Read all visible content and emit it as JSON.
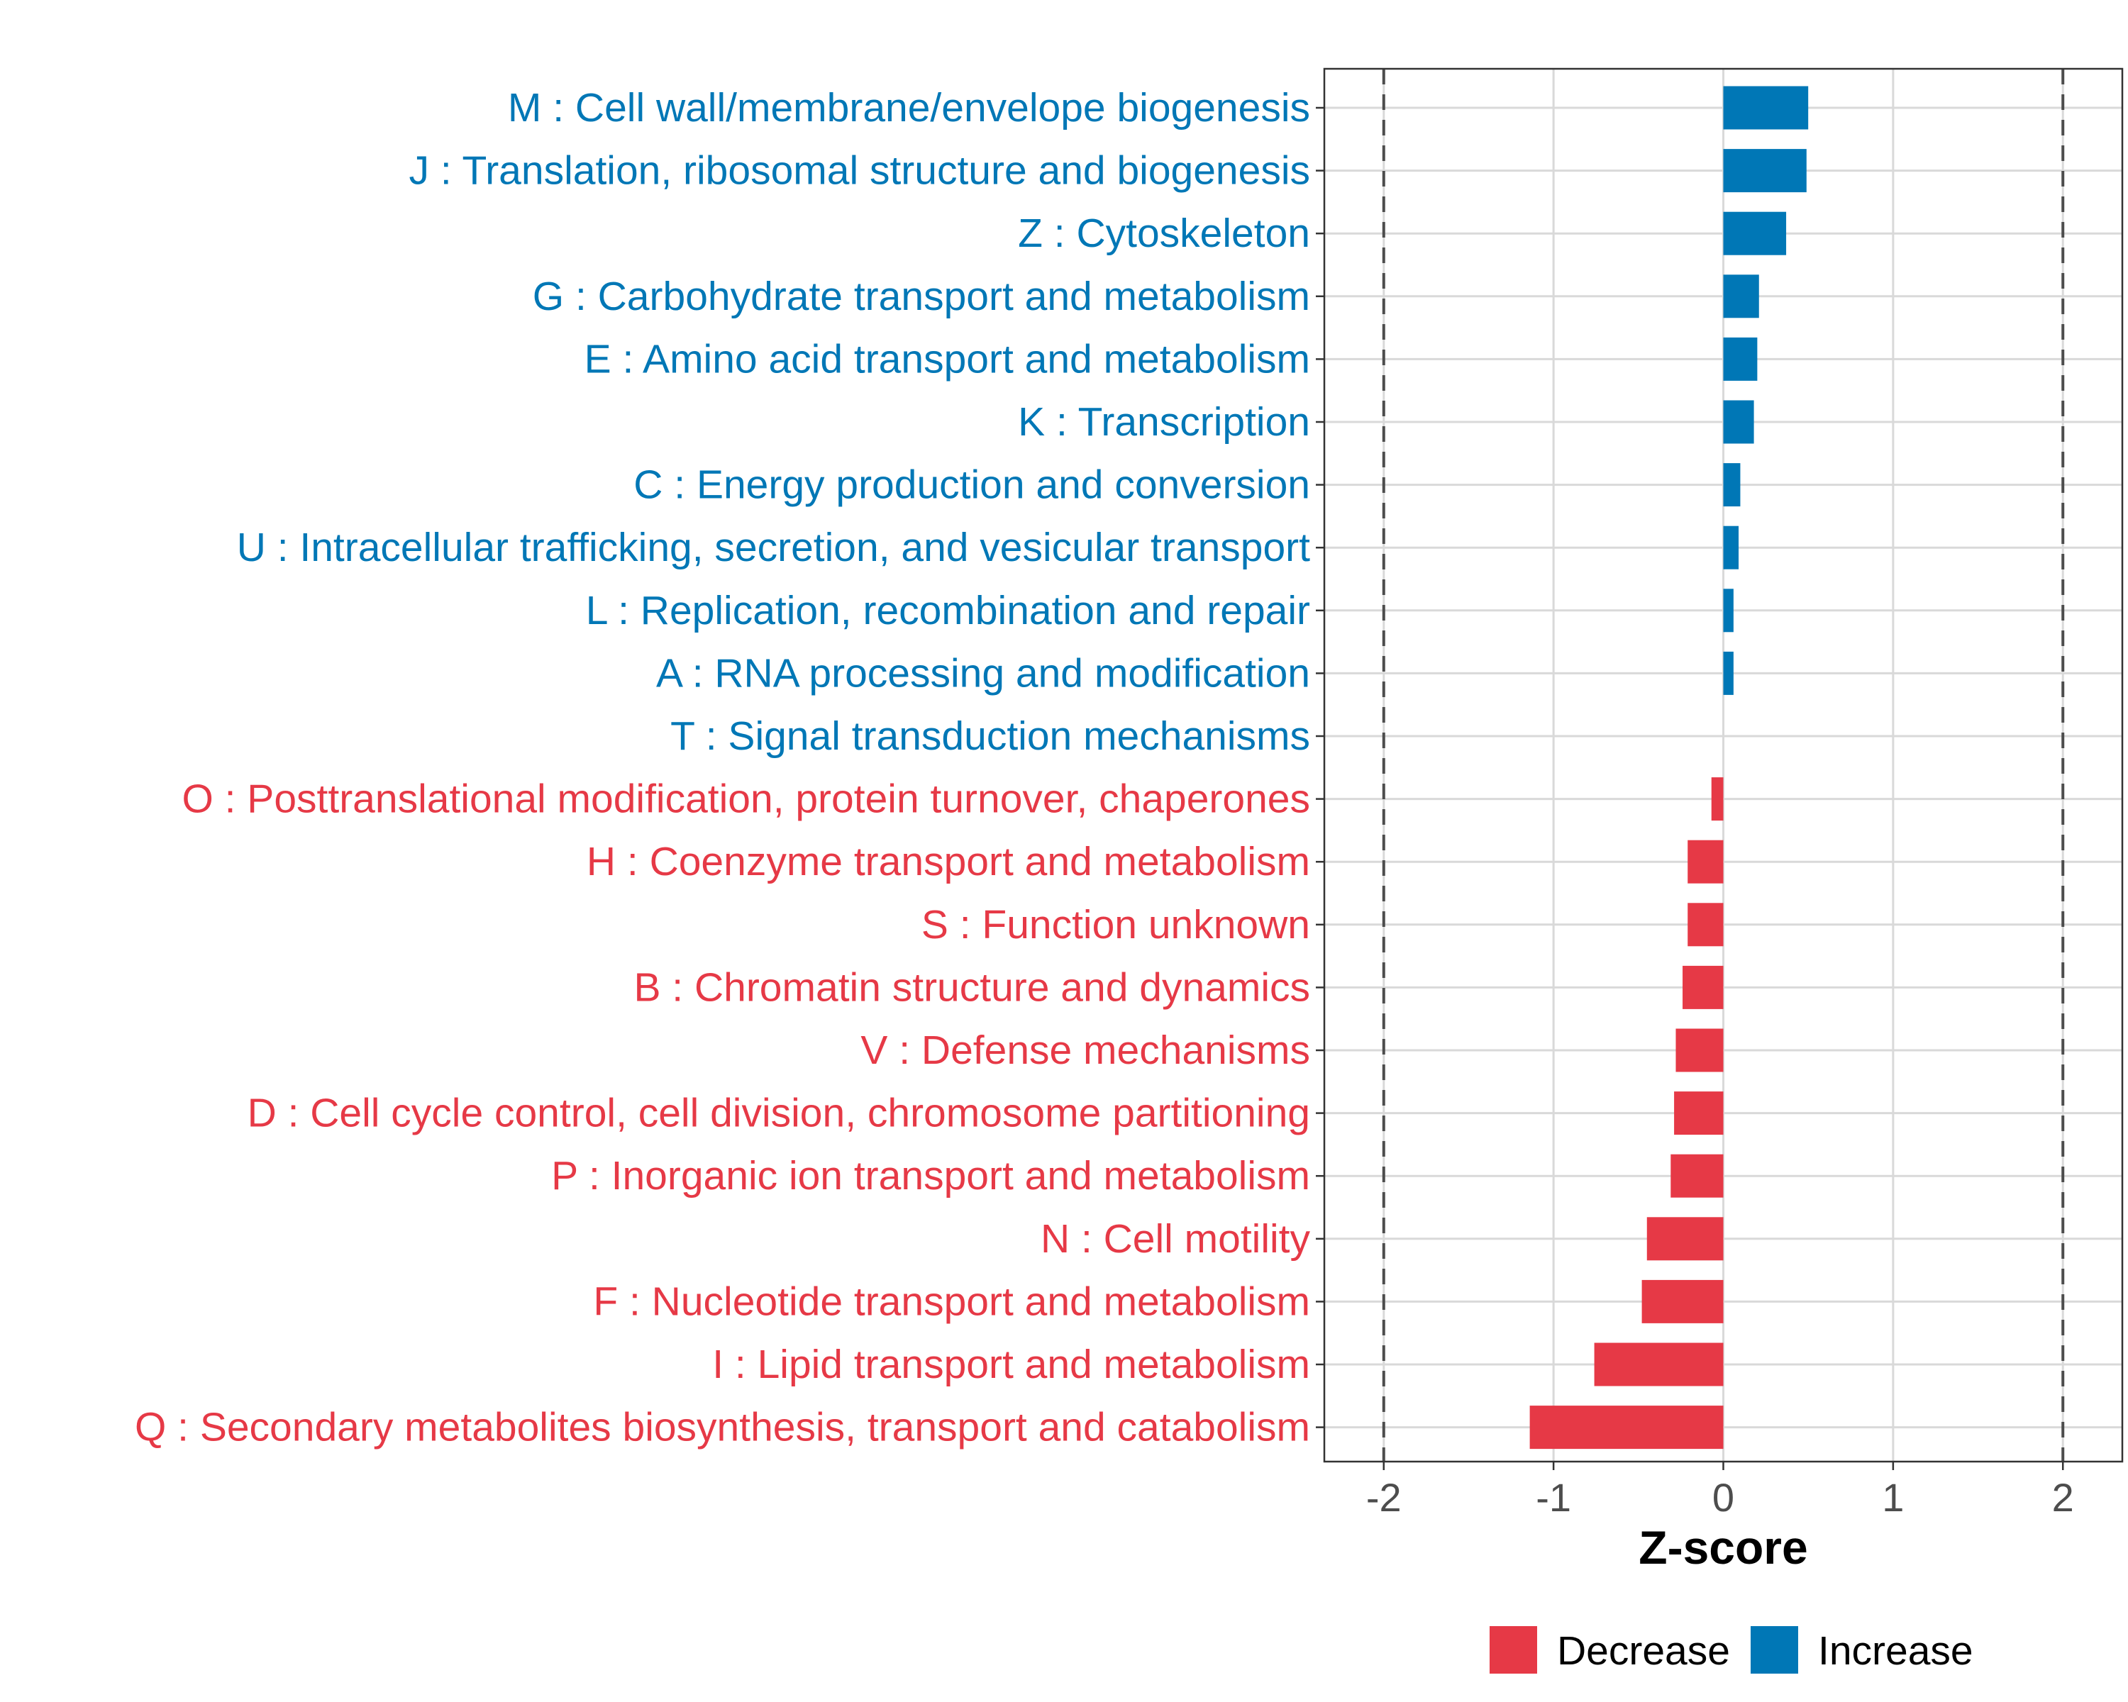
{
  "chart_data": {
    "type": "bar",
    "orientation": "horizontal",
    "xlabel": "Z-score",
    "xlim": [
      -2.35,
      2.35
    ],
    "xticks": [
      -2,
      -1,
      0,
      1,
      2
    ],
    "xtick_labels": [
      "-2",
      "-1",
      "0",
      "1",
      "2"
    ],
    "reference_lines": [
      -2,
      2
    ],
    "grid": true,
    "legend_position": "bottom",
    "legend": [
      {
        "name": "Decrease",
        "color": "#E63946"
      },
      {
        "name": "Increase",
        "color": "#0077B6"
      }
    ],
    "categories": [
      {
        "label": "M : Cell wall/membrane/envelope biogenesis",
        "value": 0.5,
        "direction": "Increase"
      },
      {
        "label": "J : Translation, ribosomal structure and biogenesis",
        "value": 0.49,
        "direction": "Increase"
      },
      {
        "label": "Z : Cytoskeleton",
        "value": 0.37,
        "direction": "Increase"
      },
      {
        "label": "G : Carbohydrate transport and metabolism",
        "value": 0.21,
        "direction": "Increase"
      },
      {
        "label": "E : Amino acid transport and metabolism",
        "value": 0.2,
        "direction": "Increase"
      },
      {
        "label": "K : Transcription",
        "value": 0.18,
        "direction": "Increase"
      },
      {
        "label": "C : Energy production and conversion",
        "value": 0.1,
        "direction": "Increase"
      },
      {
        "label": "U : Intracellular trafficking, secretion, and vesicular transport",
        "value": 0.09,
        "direction": "Increase"
      },
      {
        "label": "L : Replication, recombination and repair",
        "value": 0.06,
        "direction": "Increase"
      },
      {
        "label": "A : RNA processing and modification",
        "value": 0.06,
        "direction": "Increase"
      },
      {
        "label": "T : Signal transduction mechanisms",
        "value": 0.0,
        "direction": "Increase"
      },
      {
        "label": "O : Posttranslational modification, protein turnover, chaperones",
        "value": -0.07,
        "direction": "Decrease"
      },
      {
        "label": "H : Coenzyme transport and metabolism",
        "value": -0.21,
        "direction": "Decrease"
      },
      {
        "label": "S : Function unknown",
        "value": -0.21,
        "direction": "Decrease"
      },
      {
        "label": "B : Chromatin structure and dynamics",
        "value": -0.24,
        "direction": "Decrease"
      },
      {
        "label": "V : Defense mechanisms",
        "value": -0.28,
        "direction": "Decrease"
      },
      {
        "label": "D : Cell cycle control, cell division, chromosome partitioning",
        "value": -0.29,
        "direction": "Decrease"
      },
      {
        "label": "P : Inorganic ion transport and metabolism",
        "value": -0.31,
        "direction": "Decrease"
      },
      {
        "label": "N : Cell motility",
        "value": -0.45,
        "direction": "Decrease"
      },
      {
        "label": "F : Nucleotide transport and metabolism",
        "value": -0.48,
        "direction": "Decrease"
      },
      {
        "label": "I : Lipid transport and metabolism",
        "value": -0.76,
        "direction": "Decrease"
      },
      {
        "label": "Q : Secondary metabolites biosynthesis, transport and catabolism",
        "value": -1.14,
        "direction": "Decrease"
      }
    ]
  }
}
